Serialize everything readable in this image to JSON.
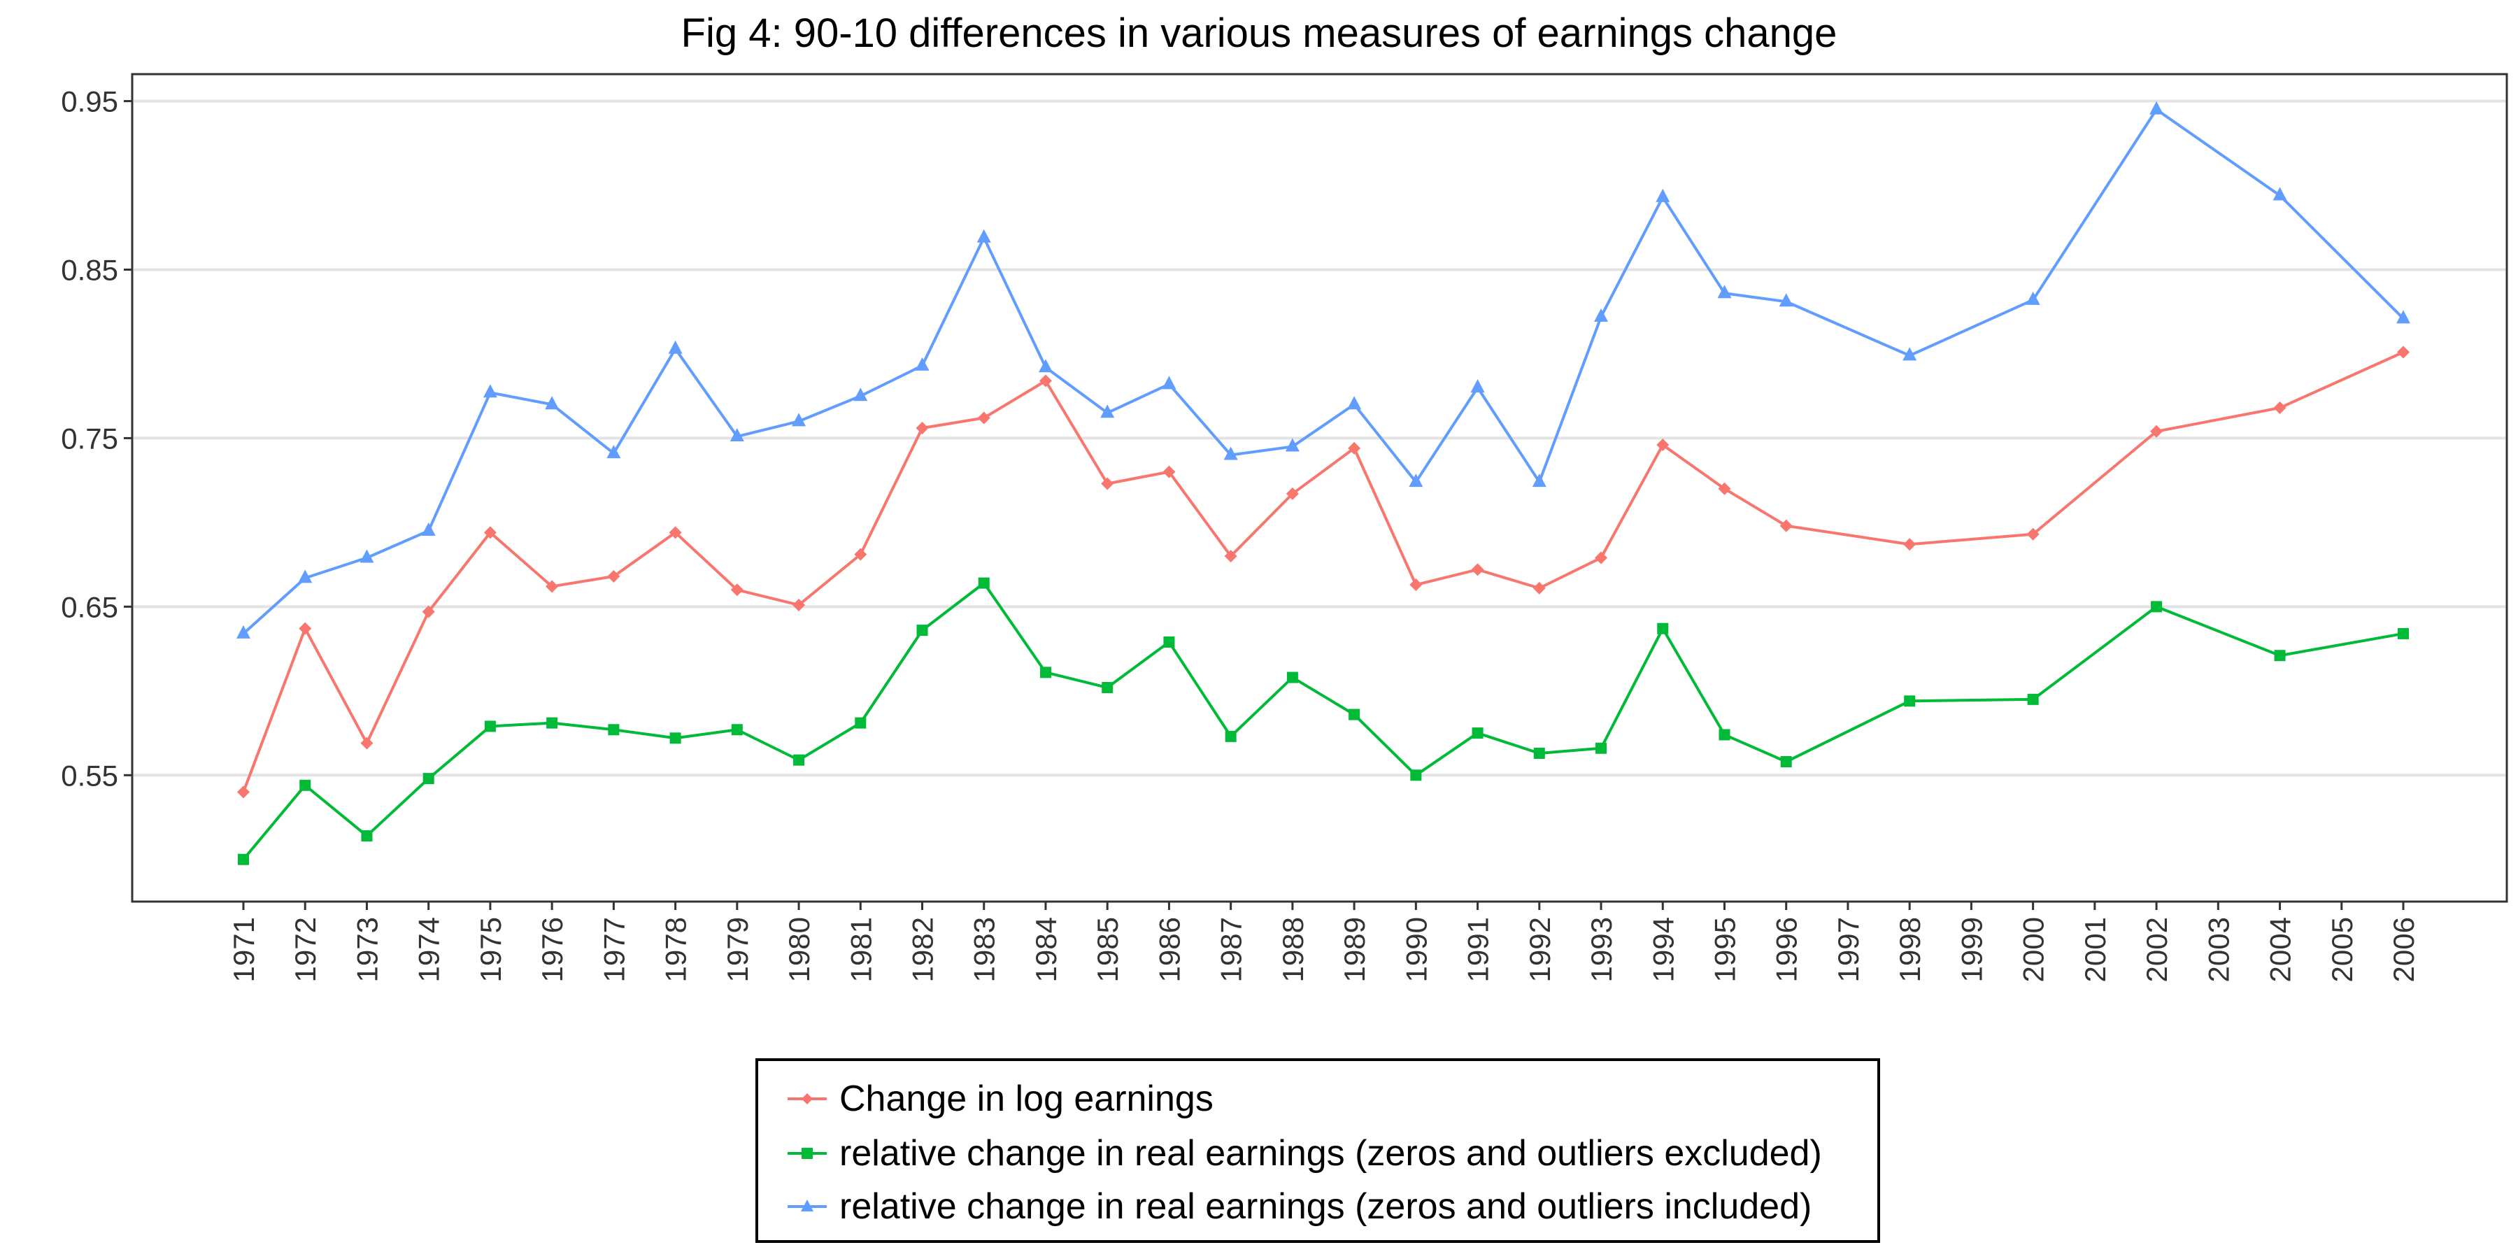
{
  "chart_data": {
    "type": "line",
    "title": "Fig 4: 90-10 differences in various measures of earnings change",
    "xlabel": "",
    "ylabel": "",
    "ylim": [
      0.475,
      0.966
    ],
    "yticks": [
      0.55,
      0.65,
      0.75,
      0.85,
      0.95
    ],
    "ytick_labels": [
      "0.55",
      "0.65",
      "0.75",
      "0.85",
      "0.95"
    ],
    "categories": [
      "1971",
      "1972",
      "1973",
      "1974",
      "1975",
      "1976",
      "1977",
      "1978",
      "1979",
      "1980",
      "1981",
      "1982",
      "1983",
      "1984",
      "1985",
      "1986",
      "1987",
      "1988",
      "1989",
      "1990",
      "1991",
      "1992",
      "1993",
      "1994",
      "1995",
      "1996",
      "1997",
      "1998",
      "1999",
      "2000",
      "2001",
      "2002",
      "2003",
      "2004",
      "2005",
      "2006"
    ],
    "grid": true,
    "legend_position": "bottom",
    "series": [
      {
        "name": "Change in log earnings",
        "color": "#F8766D",
        "marker": "diamond",
        "points": [
          [
            "1971",
            0.54
          ],
          [
            "1972",
            0.637
          ],
          [
            "1973",
            0.569
          ],
          [
            "1974",
            0.647
          ],
          [
            "1975",
            0.694
          ],
          [
            "1976",
            0.662
          ],
          [
            "1977",
            0.668
          ],
          [
            "1978",
            0.694
          ],
          [
            "1979",
            0.66
          ],
          [
            "1980",
            0.651
          ],
          [
            "1981",
            0.681
          ],
          [
            "1982",
            0.756
          ],
          [
            "1983",
            0.762
          ],
          [
            "1984",
            0.784
          ],
          [
            "1985",
            0.723
          ],
          [
            "1986",
            0.73
          ],
          [
            "1987",
            0.68
          ],
          [
            "1988",
            0.717
          ],
          [
            "1989",
            0.744
          ],
          [
            "1990",
            0.663
          ],
          [
            "1991",
            0.672
          ],
          [
            "1992",
            0.661
          ],
          [
            "1993",
            0.679
          ],
          [
            "1994",
            0.746
          ],
          [
            "1995",
            0.72
          ],
          [
            "1996",
            0.698
          ],
          [
            "1998",
            0.687
          ],
          [
            "2000",
            0.693
          ],
          [
            "2002",
            0.754
          ],
          [
            "2004",
            0.768
          ],
          [
            "2006",
            0.801
          ]
        ]
      },
      {
        "name": "relative change in real earnings (zeros and outliers excluded)",
        "color": "#00BA38",
        "marker": "square",
        "points": [
          [
            "1971",
            0.5
          ],
          [
            "1972",
            0.544
          ],
          [
            "1973",
            0.514
          ],
          [
            "1974",
            0.548
          ],
          [
            "1975",
            0.579
          ],
          [
            "1976",
            0.581
          ],
          [
            "1977",
            0.577
          ],
          [
            "1978",
            0.572
          ],
          [
            "1979",
            0.577
          ],
          [
            "1980",
            0.559
          ],
          [
            "1981",
            0.581
          ],
          [
            "1982",
            0.636
          ],
          [
            "1983",
            0.664
          ],
          [
            "1984",
            0.611
          ],
          [
            "1985",
            0.602
          ],
          [
            "1986",
            0.629
          ],
          [
            "1987",
            0.573
          ],
          [
            "1988",
            0.608
          ],
          [
            "1989",
            0.586
          ],
          [
            "1990",
            0.55
          ],
          [
            "1991",
            0.575
          ],
          [
            "1992",
            0.563
          ],
          [
            "1993",
            0.566
          ],
          [
            "1994",
            0.637
          ],
          [
            "1995",
            0.574
          ],
          [
            "1996",
            0.558
          ],
          [
            "1998",
            0.594
          ],
          [
            "2000",
            0.595
          ],
          [
            "2002",
            0.65
          ],
          [
            "2004",
            0.621
          ],
          [
            "2006",
            0.634
          ]
        ]
      },
      {
        "name": "relative change in real earnings (zeros and outliers included)",
        "color": "#619CFF",
        "marker": "triangle",
        "points": [
          [
            "1971",
            0.634
          ],
          [
            "1972",
            0.667
          ],
          [
            "1973",
            0.679
          ],
          [
            "1974",
            0.695
          ],
          [
            "1975",
            0.777
          ],
          [
            "1976",
            0.77
          ],
          [
            "1977",
            0.741
          ],
          [
            "1978",
            0.803
          ],
          [
            "1979",
            0.751
          ],
          [
            "1980",
            0.76
          ],
          [
            "1981",
            0.775
          ],
          [
            "1982",
            0.793
          ],
          [
            "1983",
            0.869
          ],
          [
            "1984",
            0.792
          ],
          [
            "1985",
            0.765
          ],
          [
            "1986",
            0.782
          ],
          [
            "1987",
            0.74
          ],
          [
            "1988",
            0.745
          ],
          [
            "1989",
            0.77
          ],
          [
            "1990",
            0.724
          ],
          [
            "1991",
            0.78
          ],
          [
            "1992",
            0.724
          ],
          [
            "1993",
            0.822
          ],
          [
            "1994",
            0.893
          ],
          [
            "1995",
            0.836
          ],
          [
            "1996",
            0.831
          ],
          [
            "1998",
            0.799
          ],
          [
            "2000",
            0.832
          ],
          [
            "2002",
            0.945
          ],
          [
            "2004",
            0.894
          ],
          [
            "2006",
            0.821
          ]
        ]
      }
    ]
  }
}
